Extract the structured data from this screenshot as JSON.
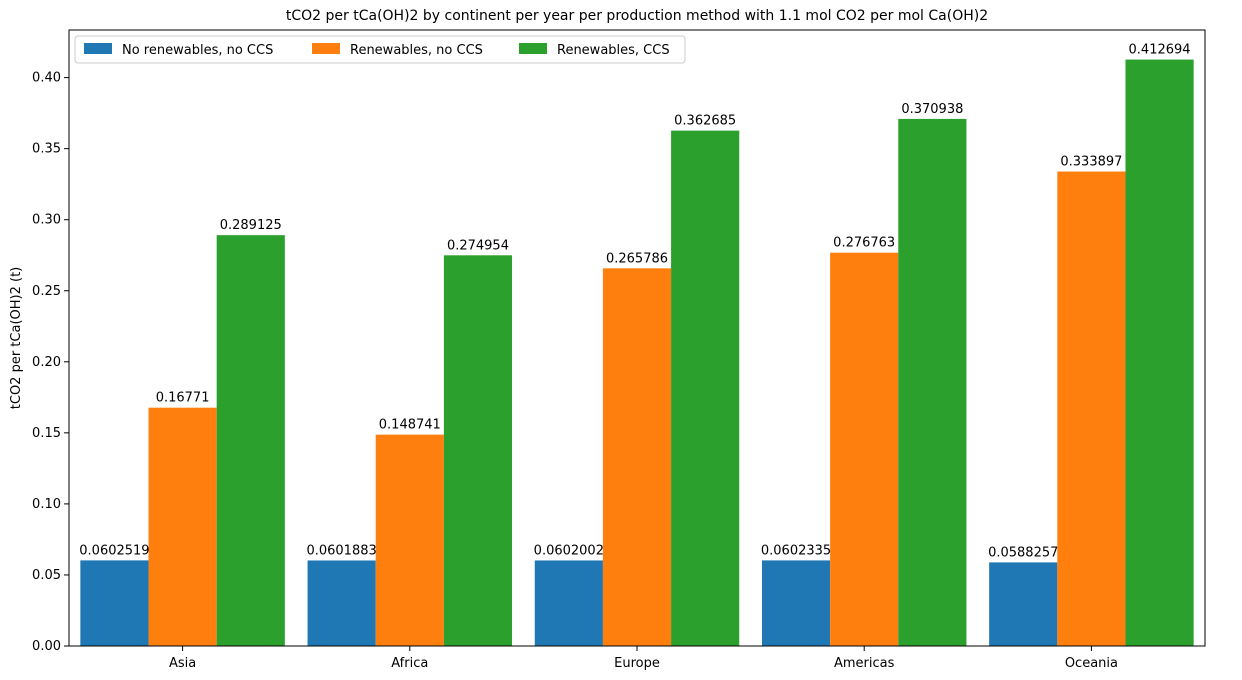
{
  "chart_data": {
    "type": "bar",
    "title": "tCO2 per tCa(OH)2 by continent per year per production method with 1.1 mol CO2 per mol Ca(OH)2",
    "xlabel": "",
    "ylabel": "tCO2 per tCa(OH)2 (t)",
    "categories": [
      "Asia",
      "Africa",
      "Europe",
      "Americas",
      "Oceania"
    ],
    "ylim": [
      0,
      0.4335
    ],
    "yticks": [
      "0.00",
      "0.05",
      "0.10",
      "0.15",
      "0.20",
      "0.25",
      "0.30",
      "0.35",
      "0.40"
    ],
    "grid": false,
    "legend_position": "top-left",
    "series": [
      {
        "name": "No renewables, no CCS",
        "color": "#1f77b4",
        "values": [
          0.0602519,
          0.0601883,
          0.0602002,
          0.0602335,
          0.0588257
        ],
        "labels": [
          "0.0602519",
          "0.0601883",
          "0.0602002",
          "0.0602335",
          "0.0588257"
        ]
      },
      {
        "name": "Renewables, no CCS",
        "color": "#ff7f0e",
        "values": [
          0.16771,
          0.148741,
          0.265786,
          0.276763,
          0.333897
        ],
        "labels": [
          "0.16771",
          "0.148741",
          "0.265786",
          "0.276763",
          "0.333897"
        ]
      },
      {
        "name": "Renewables, CCS",
        "color": "#2ca02c",
        "values": [
          0.289125,
          0.274954,
          0.362685,
          0.370938,
          0.412694
        ],
        "labels": [
          "0.289125",
          "0.274954",
          "0.362685",
          "0.370938",
          "0.412694"
        ]
      }
    ]
  }
}
